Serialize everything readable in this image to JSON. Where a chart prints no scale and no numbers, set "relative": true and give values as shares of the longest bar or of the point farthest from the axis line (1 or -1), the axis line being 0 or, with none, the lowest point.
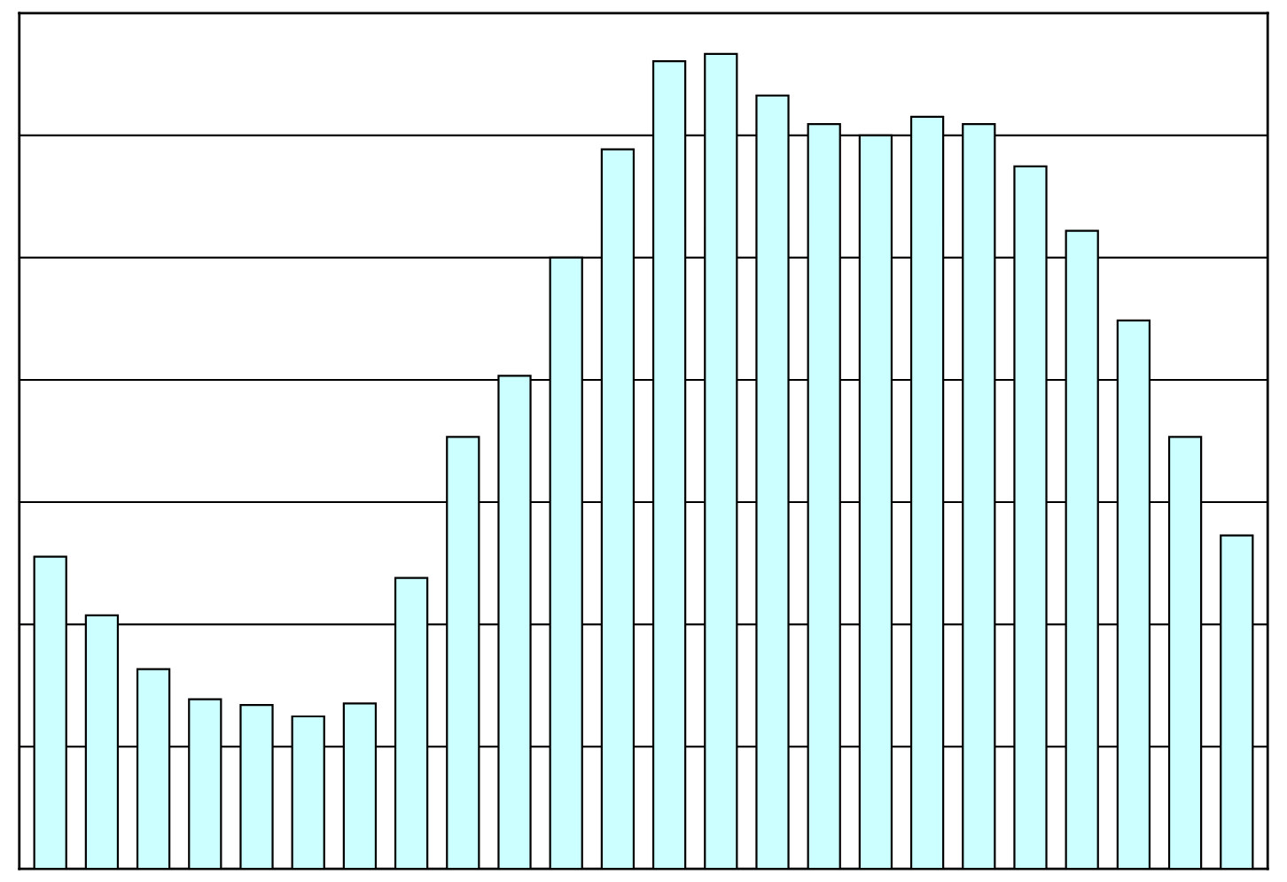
{
  "chart_data": {
    "type": "bar",
    "relative": true,
    "grid": "y",
    "categories": [
      null,
      null,
      null,
      null,
      null,
      null,
      null,
      null,
      null,
      null,
      null,
      null,
      null,
      null,
      null,
      null,
      null,
      null,
      null,
      null,
      null,
      null,
      null,
      null
    ],
    "series": [
      {
        "color": "#ccffff",
        "values": [
          0.383,
          0.311,
          0.245,
          0.208,
          0.201,
          0.187,
          0.203,
          0.357,
          0.53,
          0.605,
          0.75,
          0.883,
          0.991,
          1,
          0.949,
          0.914,
          0.9,
          0.923,
          0.914,
          0.862,
          0.783,
          0.673,
          0.53,
          0.409
        ]
      }
    ]
  }
}
